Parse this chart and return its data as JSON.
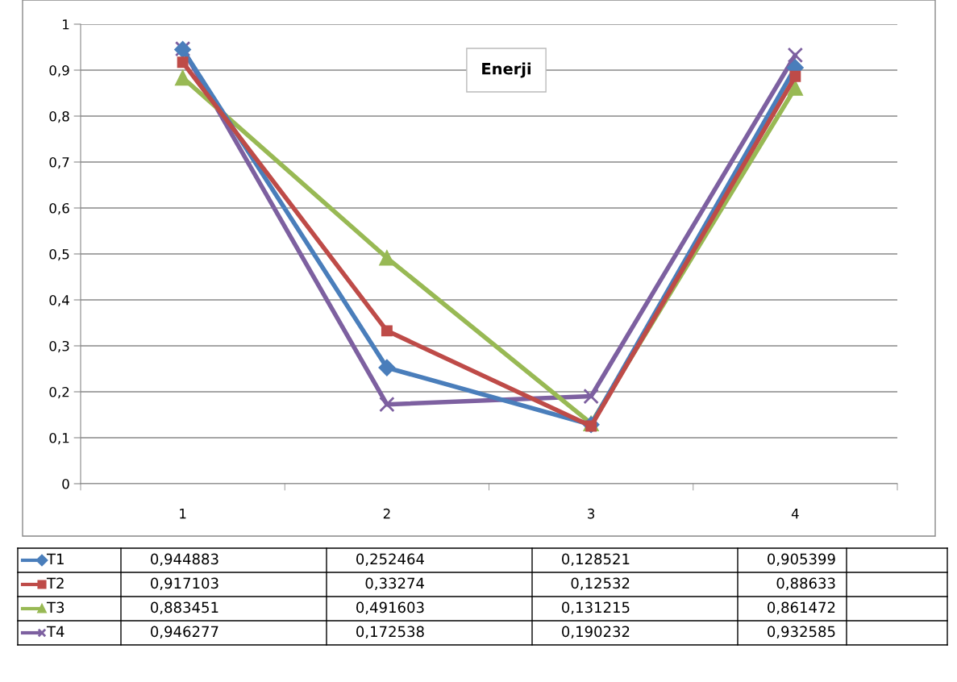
{
  "chart_data": {
    "type": "line",
    "title": "Enerji",
    "categories": [
      "1",
      "2",
      "3",
      "4"
    ],
    "series": [
      {
        "name": "T1",
        "color": "#4a7ebb",
        "marker": "diamond",
        "values": [
          0.944883,
          0.252464,
          0.128521,
          0.905399
        ],
        "value_labels": [
          "0,944883",
          "0,252464",
          "0,128521",
          "0,905399"
        ]
      },
      {
        "name": "T2",
        "color": "#be4b48",
        "marker": "square",
        "values": [
          0.917103,
          0.33274,
          0.12532,
          0.88633
        ],
        "value_labels": [
          "0,917103",
          "0,33274",
          "0,12532",
          "0,88633"
        ]
      },
      {
        "name": "T3",
        "color": "#98b954",
        "marker": "triangle",
        "values": [
          0.883451,
          0.491603,
          0.131215,
          0.861472
        ],
        "value_labels": [
          "0,883451",
          "0,491603",
          "0,131215",
          "0,861472"
        ]
      },
      {
        "name": "T4",
        "color": "#7d60a0",
        "marker": "cross",
        "values": [
          0.946277,
          0.172538,
          0.190232,
          0.932585
        ],
        "value_labels": [
          "0,946277",
          "0,172538",
          "0,190232",
          "0,932585"
        ]
      }
    ],
    "ylim": [
      0,
      1
    ],
    "yticks": [
      0,
      {
        "value": 0.1,
        "label": "0,1"
      },
      {
        "value": 0.2,
        "label": "0,2"
      },
      {
        "value": 0.3,
        "label": "0,3"
      },
      {
        "value": 0.4,
        "label": "0,4"
      },
      {
        "value": 0.5,
        "label": "0,5"
      },
      {
        "value": 0.6,
        "label": "0,6"
      },
      {
        "value": 0.7,
        "label": "0,7"
      },
      {
        "value": 0.8,
        "label": "0,8"
      },
      {
        "value": 0.9,
        "label": "0,9"
      },
      1
    ],
    "grid": "y",
    "legend": "bottom",
    "line_style": "solid"
  }
}
